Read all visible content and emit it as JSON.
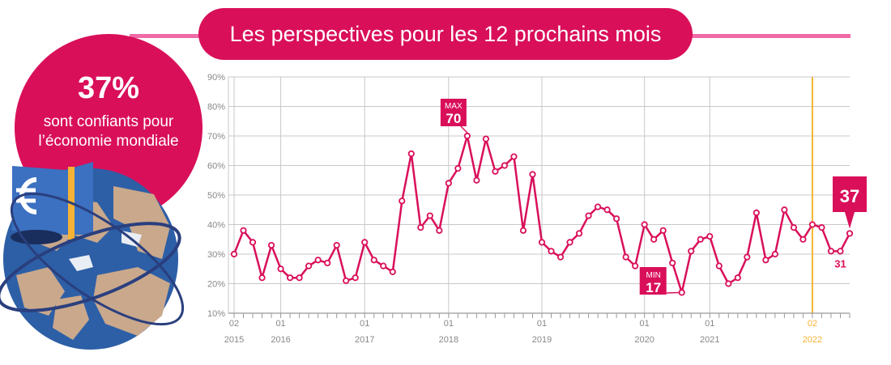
{
  "title": "Les perspectives pour les 12 prochains mois",
  "highlight": {
    "value": "37%",
    "line1": "sont confiants pour",
    "line2": "l’économie mondiale"
  },
  "icons": [
    "globe-euro-icon"
  ],
  "colors": {
    "accent": "#d90f5a",
    "accent_light": "#f06aa6",
    "current": "#f5b335",
    "grid": "#c8c8c8",
    "axis_text": "#888888"
  },
  "chart_data": {
    "type": "line",
    "y_ticks": [
      "10%",
      "20%",
      "30%",
      "40%",
      "50%",
      "60%",
      "70%",
      "80%",
      "90%"
    ],
    "ylim": [
      10,
      90
    ],
    "grid": true,
    "x_ticks": [
      {
        "month": "02",
        "year": "2015",
        "index": 0
      },
      {
        "month": "01",
        "year": "2016",
        "index": 5
      },
      {
        "month": "01",
        "year": "2017",
        "index": 14
      },
      {
        "month": "01",
        "year": "2018",
        "index": 23
      },
      {
        "month": "01",
        "year": "2019",
        "index": 33
      },
      {
        "month": "01",
        "year": "2020",
        "index": 44
      },
      {
        "month": "01",
        "year": "2021",
        "index": 51
      },
      {
        "month": "02",
        "year": "2022",
        "index": 62
      }
    ],
    "values": [
      30,
      38,
      34,
      22,
      33,
      25,
      22,
      22,
      26,
      28,
      27,
      33,
      21,
      22,
      34,
      28,
      26,
      24,
      48,
      64,
      39,
      43,
      38,
      54,
      59,
      70,
      55,
      69,
      58,
      60,
      63,
      38,
      57,
      34,
      31,
      29,
      34,
      37,
      43,
      46,
      45,
      42,
      29,
      26,
      40,
      35,
      38,
      27,
      17,
      31,
      35,
      36,
      26,
      20,
      22,
      29,
      44,
      28,
      30,
      45,
      39,
      35,
      40,
      39,
      31,
      31,
      37
    ],
    "annotations": [
      {
        "label": "MAX",
        "value": "70",
        "index": 25
      },
      {
        "label": "MIN",
        "value": "17",
        "index": 48
      },
      {
        "value": "31",
        "index": 65
      },
      {
        "value": "37",
        "index": 66
      }
    ]
  }
}
